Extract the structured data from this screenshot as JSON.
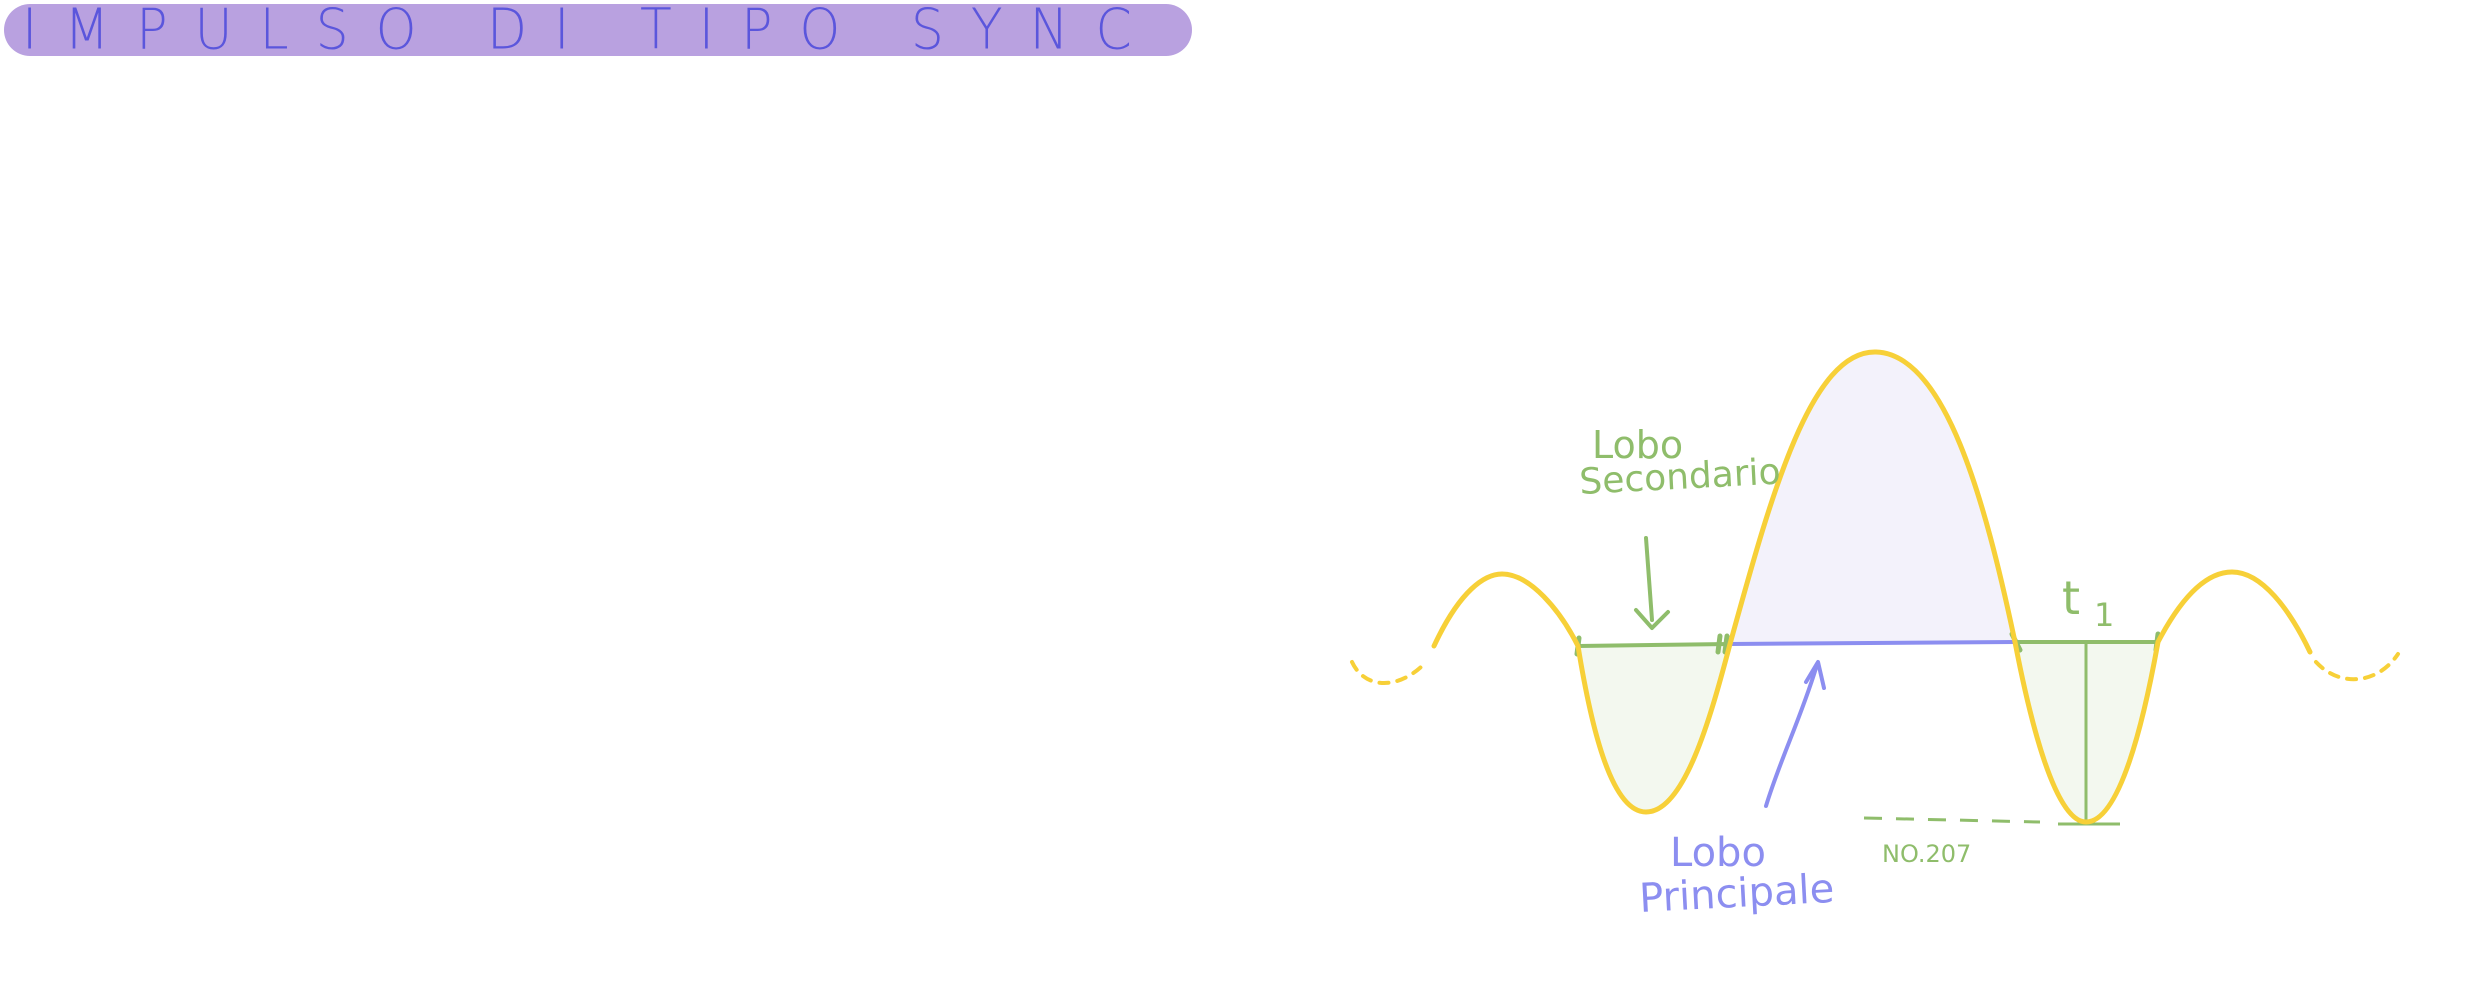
{
  "title": "IMPULSO DI TIPO SYNC",
  "labels": {
    "secondary_lobe_line1": "Lobo",
    "secondary_lobe_line2": "Secondario",
    "main_lobe_line1": "Lobo",
    "main_lobe_line2": "Principale",
    "t1_base": "t",
    "t1_sub": "1",
    "ratio": "NO.207"
  },
  "colors": {
    "banner": "#b9a1e0",
    "title": "#5b56dc",
    "curve": "#f7d038",
    "main_fill": "#f3f2fb",
    "side_fill": "#f3f8ef",
    "green": "#8fbd6b",
    "blue": "#8c8ef0"
  }
}
